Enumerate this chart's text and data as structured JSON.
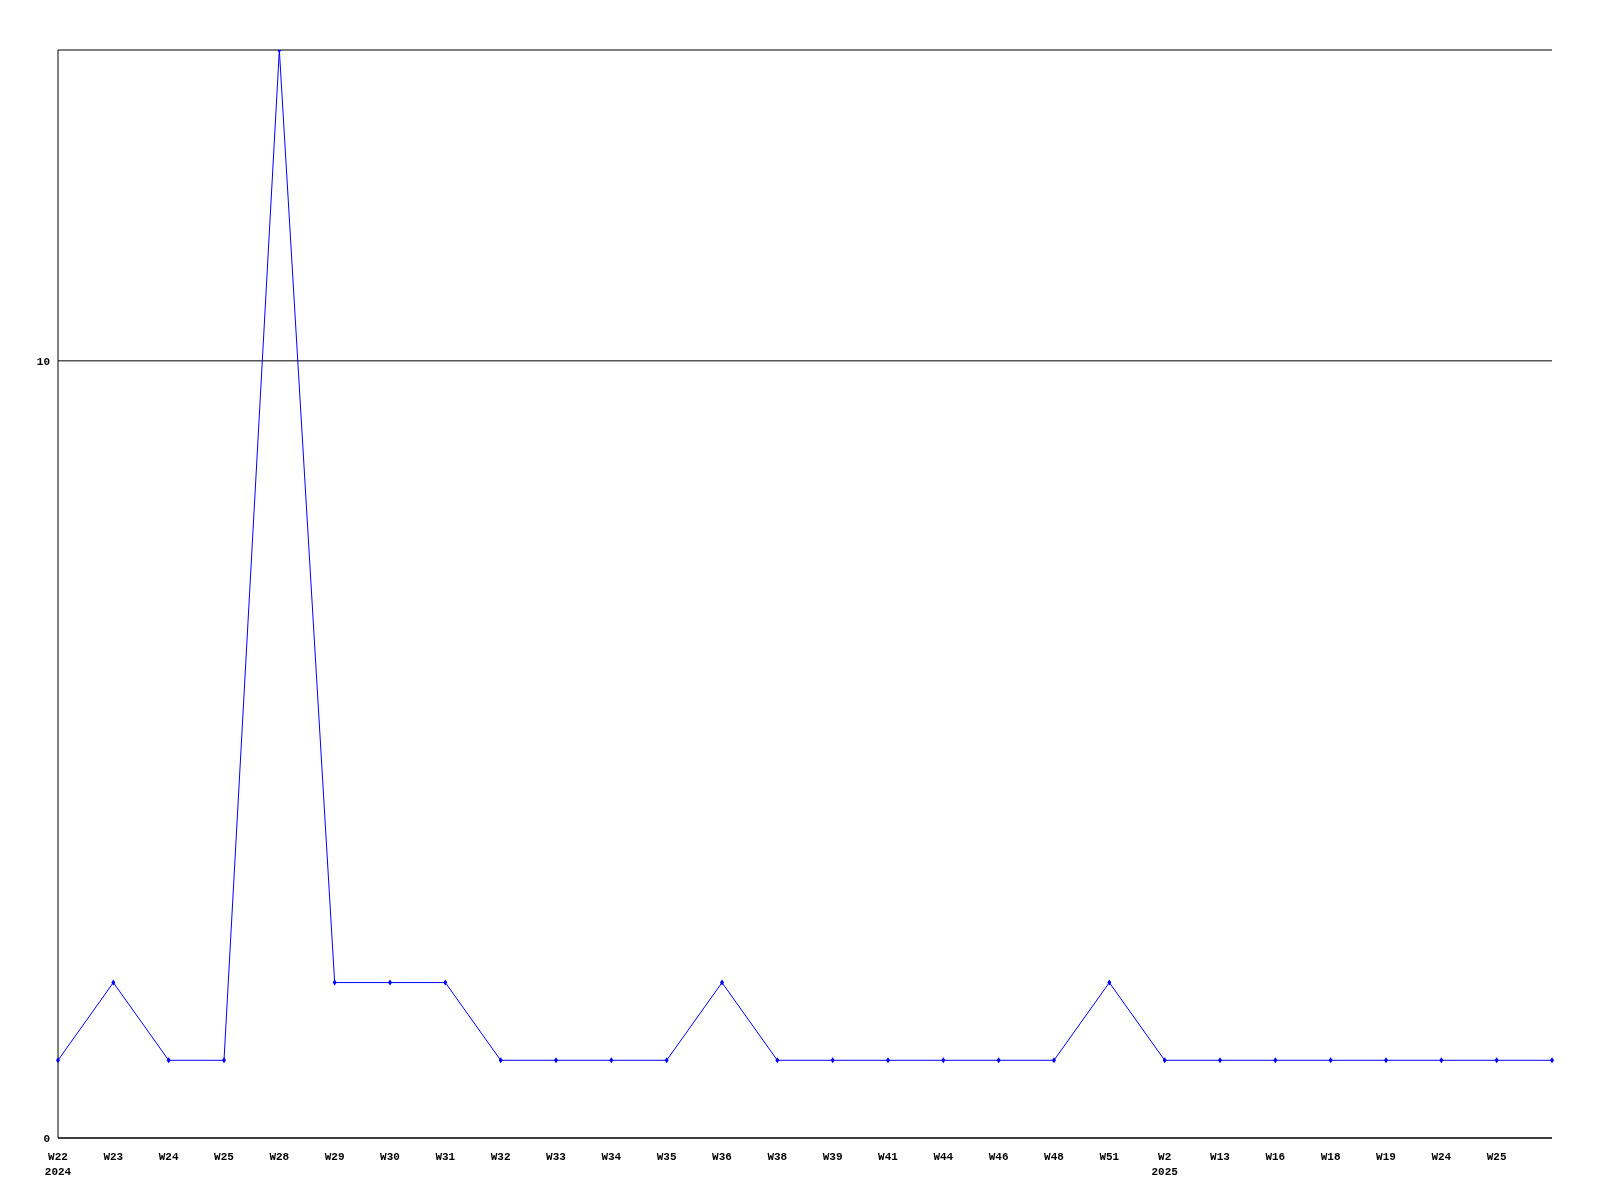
{
  "chart_data": {
    "type": "line",
    "categories": [
      "W22\n2024",
      "W23",
      "W24",
      "W25",
      "W28",
      "W29",
      "W30",
      "W31",
      "W32",
      "W33",
      "W34",
      "W35",
      "W36",
      "W38",
      "W39",
      "W41",
      "W44",
      "W46",
      "W48",
      "W51",
      "W2\n2025",
      "W13",
      "W16",
      "W18",
      "W19",
      "W24",
      "W25",
      null
    ],
    "series": [
      {
        "color": "#0000ff",
        "values": [
          1,
          2,
          1,
          1,
          14,
          2,
          2,
          2,
          1,
          1,
          1,
          1,
          2,
          1,
          1,
          1,
          1,
          1,
          1,
          2,
          1,
          1,
          1,
          1,
          1,
          1,
          1,
          1
        ]
      }
    ],
    "ylim": [
      0,
      14
    ],
    "yticks": [
      0,
      10
    ],
    "grid": "y",
    "marker": "diamond",
    "line_style": "solid"
  }
}
